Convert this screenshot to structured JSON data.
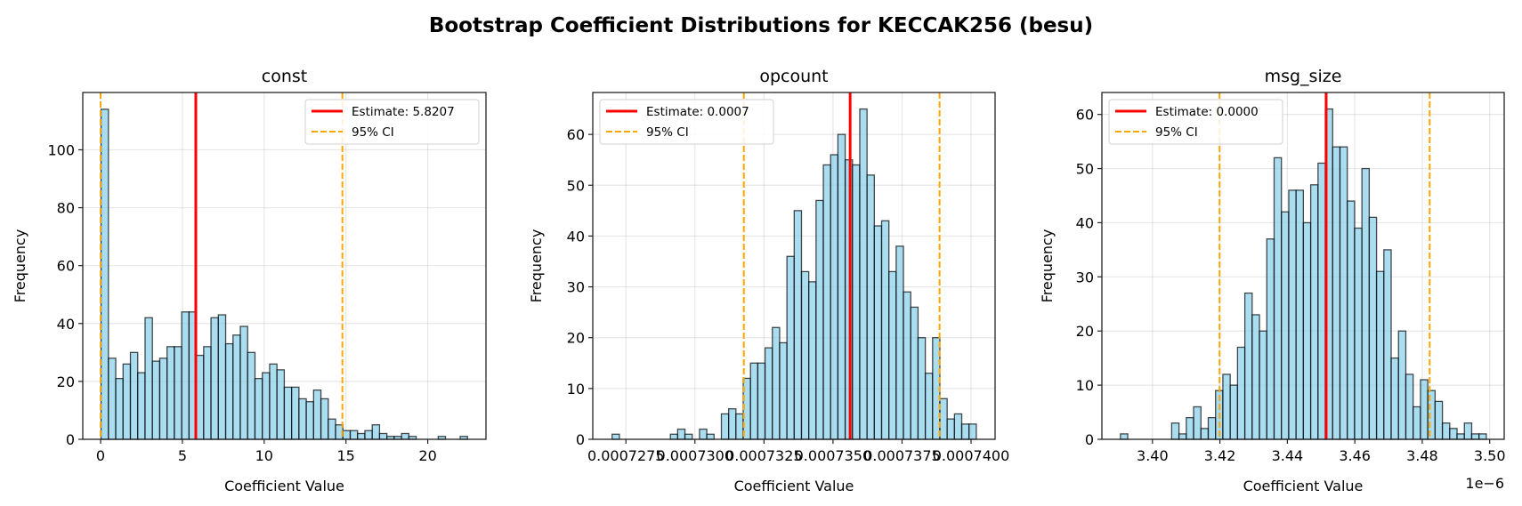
{
  "figure_title": "Bootstrap Coefficient Distributions for KECCAK256 (besu)",
  "colors": {
    "bar_fill": "#87CEEB",
    "bar_edge": "#000000",
    "estimate_line": "#ff0000",
    "ci_line": "#ffa500",
    "grid": "#b0b0b0"
  },
  "chart_data": [
    {
      "type": "bar",
      "title": "const",
      "xlabel": "Coefficient Value",
      "ylabel": "Frequency",
      "bin_range": [
        0.03,
        22.43
      ],
      "counts": [
        114,
        28,
        21,
        26,
        30,
        23,
        42,
        27,
        28,
        32,
        32,
        44,
        44,
        29,
        32,
        42,
        43,
        33,
        36,
        39,
        30,
        21,
        23,
        26,
        24,
        18,
        18,
        14,
        13,
        17,
        14,
        7,
        5,
        3,
        3,
        2,
        3,
        5,
        2,
        1,
        1,
        2,
        1,
        0,
        0,
        0,
        1,
        0,
        0,
        1
      ],
      "estimate": 5.8207,
      "ci": [
        0.0,
        14.78
      ],
      "xlim": [
        -1.09,
        23.56
      ],
      "ylim": [
        0,
        119.8
      ],
      "xticks": [
        0,
        5,
        10,
        15,
        20
      ],
      "xtick_labels": [
        "0",
        "5",
        "10",
        "15",
        "20"
      ],
      "yticks": [
        0,
        20,
        40,
        60,
        80,
        100
      ],
      "ytick_labels": [
        "0",
        "20",
        "40",
        "60",
        "80",
        "100"
      ],
      "x_offset_text": "",
      "grid": true,
      "legend": {
        "position": "upper-right",
        "estimate_label": "Estimate: 5.8207",
        "ci_label": "95% CI"
      }
    },
    {
      "type": "bar",
      "title": "opcount",
      "xlabel": "Coefficient Value",
      "ylabel": "Frequency",
      "bin_range": [
        0.000727,
        0.00074019
      ],
      "counts": [
        1,
        0,
        0,
        0,
        0,
        0,
        0,
        0,
        1,
        2,
        1,
        0,
        2,
        1,
        0,
        5,
        6,
        5,
        12,
        15,
        15,
        18,
        22,
        19,
        36,
        45,
        33,
        31,
        47,
        54,
        56,
        60,
        55,
        54,
        65,
        52,
        42,
        43,
        33,
        38,
        29,
        26,
        20,
        13,
        20,
        8,
        4,
        5,
        3,
        3
      ],
      "estimate": 0.00073562,
      "ci": [
        0.00073177,
        0.00073886
      ],
      "xlim": [
        0.0007263,
        0.00074087
      ],
      "ylim": [
        0,
        68.25
      ],
      "xticks": [
        0.0007275,
        0.00073,
        0.0007325,
        0.000735,
        0.0007375,
        0.00074
      ],
      "xtick_labels": [
        "0.0007275",
        "0.0007300",
        "0.0007325",
        "0.0007350",
        "0.0007375",
        "0.0007400"
      ],
      "yticks": [
        0,
        10,
        20,
        30,
        40,
        50,
        60
      ],
      "ytick_labels": [
        "0",
        "10",
        "20",
        "30",
        "40",
        "50",
        "60"
      ],
      "x_offset_text": "",
      "grid": true,
      "legend": {
        "position": "upper-left",
        "estimate_label": "Estimate: 0.0007",
        "ci_label": "95% CI"
      }
    },
    {
      "type": "bar",
      "title": "msg_size",
      "xlabel": "Coefficient Value",
      "ylabel": "Frequency",
      "bin_range": [
        3.3905,
        3.499
      ],
      "counts": [
        1,
        0,
        0,
        0,
        0,
        0,
        0,
        3,
        1,
        4,
        6,
        2,
        4,
        9,
        12,
        10,
        17,
        27,
        23,
        20,
        37,
        52,
        42,
        46,
        46,
        40,
        47,
        51,
        61,
        54,
        54,
        44,
        39,
        50,
        41,
        31,
        35,
        15,
        20,
        12,
        6,
        11,
        9,
        7,
        3,
        2,
        1,
        3,
        1,
        1
      ],
      "estimate": 3.4515,
      "ci": [
        3.4199,
        3.4822
      ],
      "xlim": [
        3.385,
        3.5043
      ],
      "ylim": [
        0,
        64.05
      ],
      "xticks": [
        3.4,
        3.42,
        3.44,
        3.46,
        3.48,
        3.5
      ],
      "xtick_labels": [
        "3.40",
        "3.42",
        "3.44",
        "3.46",
        "3.48",
        "3.50"
      ],
      "yticks": [
        0,
        10,
        20,
        30,
        40,
        50,
        60
      ],
      "ytick_labels": [
        "0",
        "10",
        "20",
        "30",
        "40",
        "50",
        "60"
      ],
      "x_offset_text": "1e−6",
      "grid": true,
      "legend": {
        "position": "upper-left",
        "estimate_label": "Estimate: 0.0000",
        "ci_label": "95% CI"
      }
    }
  ]
}
